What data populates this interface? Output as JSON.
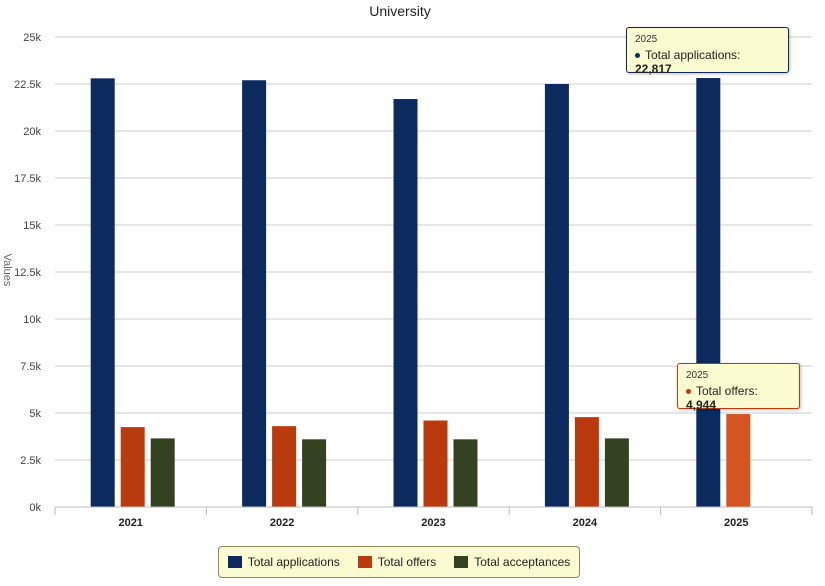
{
  "chart_data": {
    "type": "bar",
    "title": "University",
    "xlabel": "",
    "ylabel": "Values",
    "ylim": [
      0,
      25000
    ],
    "yticks": [
      0,
      2500,
      5000,
      7500,
      10000,
      12500,
      15000,
      17500,
      20000,
      22500,
      25000
    ],
    "ytick_labels": [
      "0k",
      "2.5k",
      "5k",
      "7.5k",
      "10k",
      "12.5k",
      "15k",
      "17.5k",
      "20k",
      "22.5k",
      "25k"
    ],
    "categories": [
      "2021",
      "2022",
      "2023",
      "2024",
      "2025"
    ],
    "series": [
      {
        "name": "Total applications",
        "color": "#0c2a5e",
        "values": [
          22800,
          22700,
          21700,
          22500,
          22817
        ]
      },
      {
        "name": "Total offers",
        "color": "#b93a0c",
        "values": [
          4250,
          4300,
          4600,
          4780,
          4944
        ]
      },
      {
        "name": "Total acceptances",
        "color": "#344222",
        "values": [
          3650,
          3600,
          3600,
          3650,
          0
        ]
      }
    ],
    "grid": true,
    "legend": "bottom-center"
  },
  "tooltips": [
    {
      "year": "2025",
      "series": "Total applications",
      "label": "Total applications:",
      "value": "22,817",
      "color": "#0c2a5e"
    },
    {
      "year": "2025",
      "series": "Total offers",
      "label": "Total offers:",
      "value": "4,944",
      "color": "#b93a0c"
    }
  ],
  "colors": {
    "hovered_offers": "#d45522",
    "grid": "#cccccc",
    "tooltip_bg": "#fbfbd2"
  }
}
